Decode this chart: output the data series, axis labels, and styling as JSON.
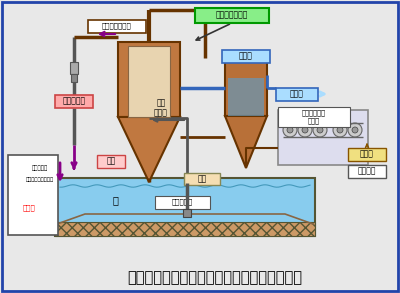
{
  "bg_color": "#e8e8e8",
  "border_color": "#2244aa",
  "title_text": "生態系保全型底泥資源化工法システムフロー",
  "title_fontsize": 10.5,
  "labels": {
    "jido_screen": "自動スクリーン",
    "munen": "無燃中性凝集剤",
    "cyclone": "サイクロン",
    "gyoshu": "凝集\n分離槽",
    "noshuku": "濃縮槽",
    "josui": "上澄水",
    "sentaku": "洗砂",
    "taiban": "台船",
    "belt_press": "ベルトプレス\n脱水機",
    "dassui_do": "脱水土",
    "dassui_ro": "脱水ろ液",
    "pump": "浚渫ポンプ",
    "screen_line1": "スクリン粕・ビニル",
    "screen_line2": "類・枝葉等",
    "haiki": "廃棄物"
  },
  "pond_color": "#88ccee",
  "pond_bottom_color": "#cc9966",
  "tank1_color": "#c07840",
  "tank2_color": "#b87038",
  "cyclone_color": "#ffaaaa",
  "munen_color": "#88ee88",
  "josui_color": "#aaddff",
  "noshuku_label_color": "#aaddff",
  "arrow_blue": "#0000cc",
  "arrow_brown": "#663300",
  "arrow_purple": "#880088",
  "left_box_border": "#555555"
}
